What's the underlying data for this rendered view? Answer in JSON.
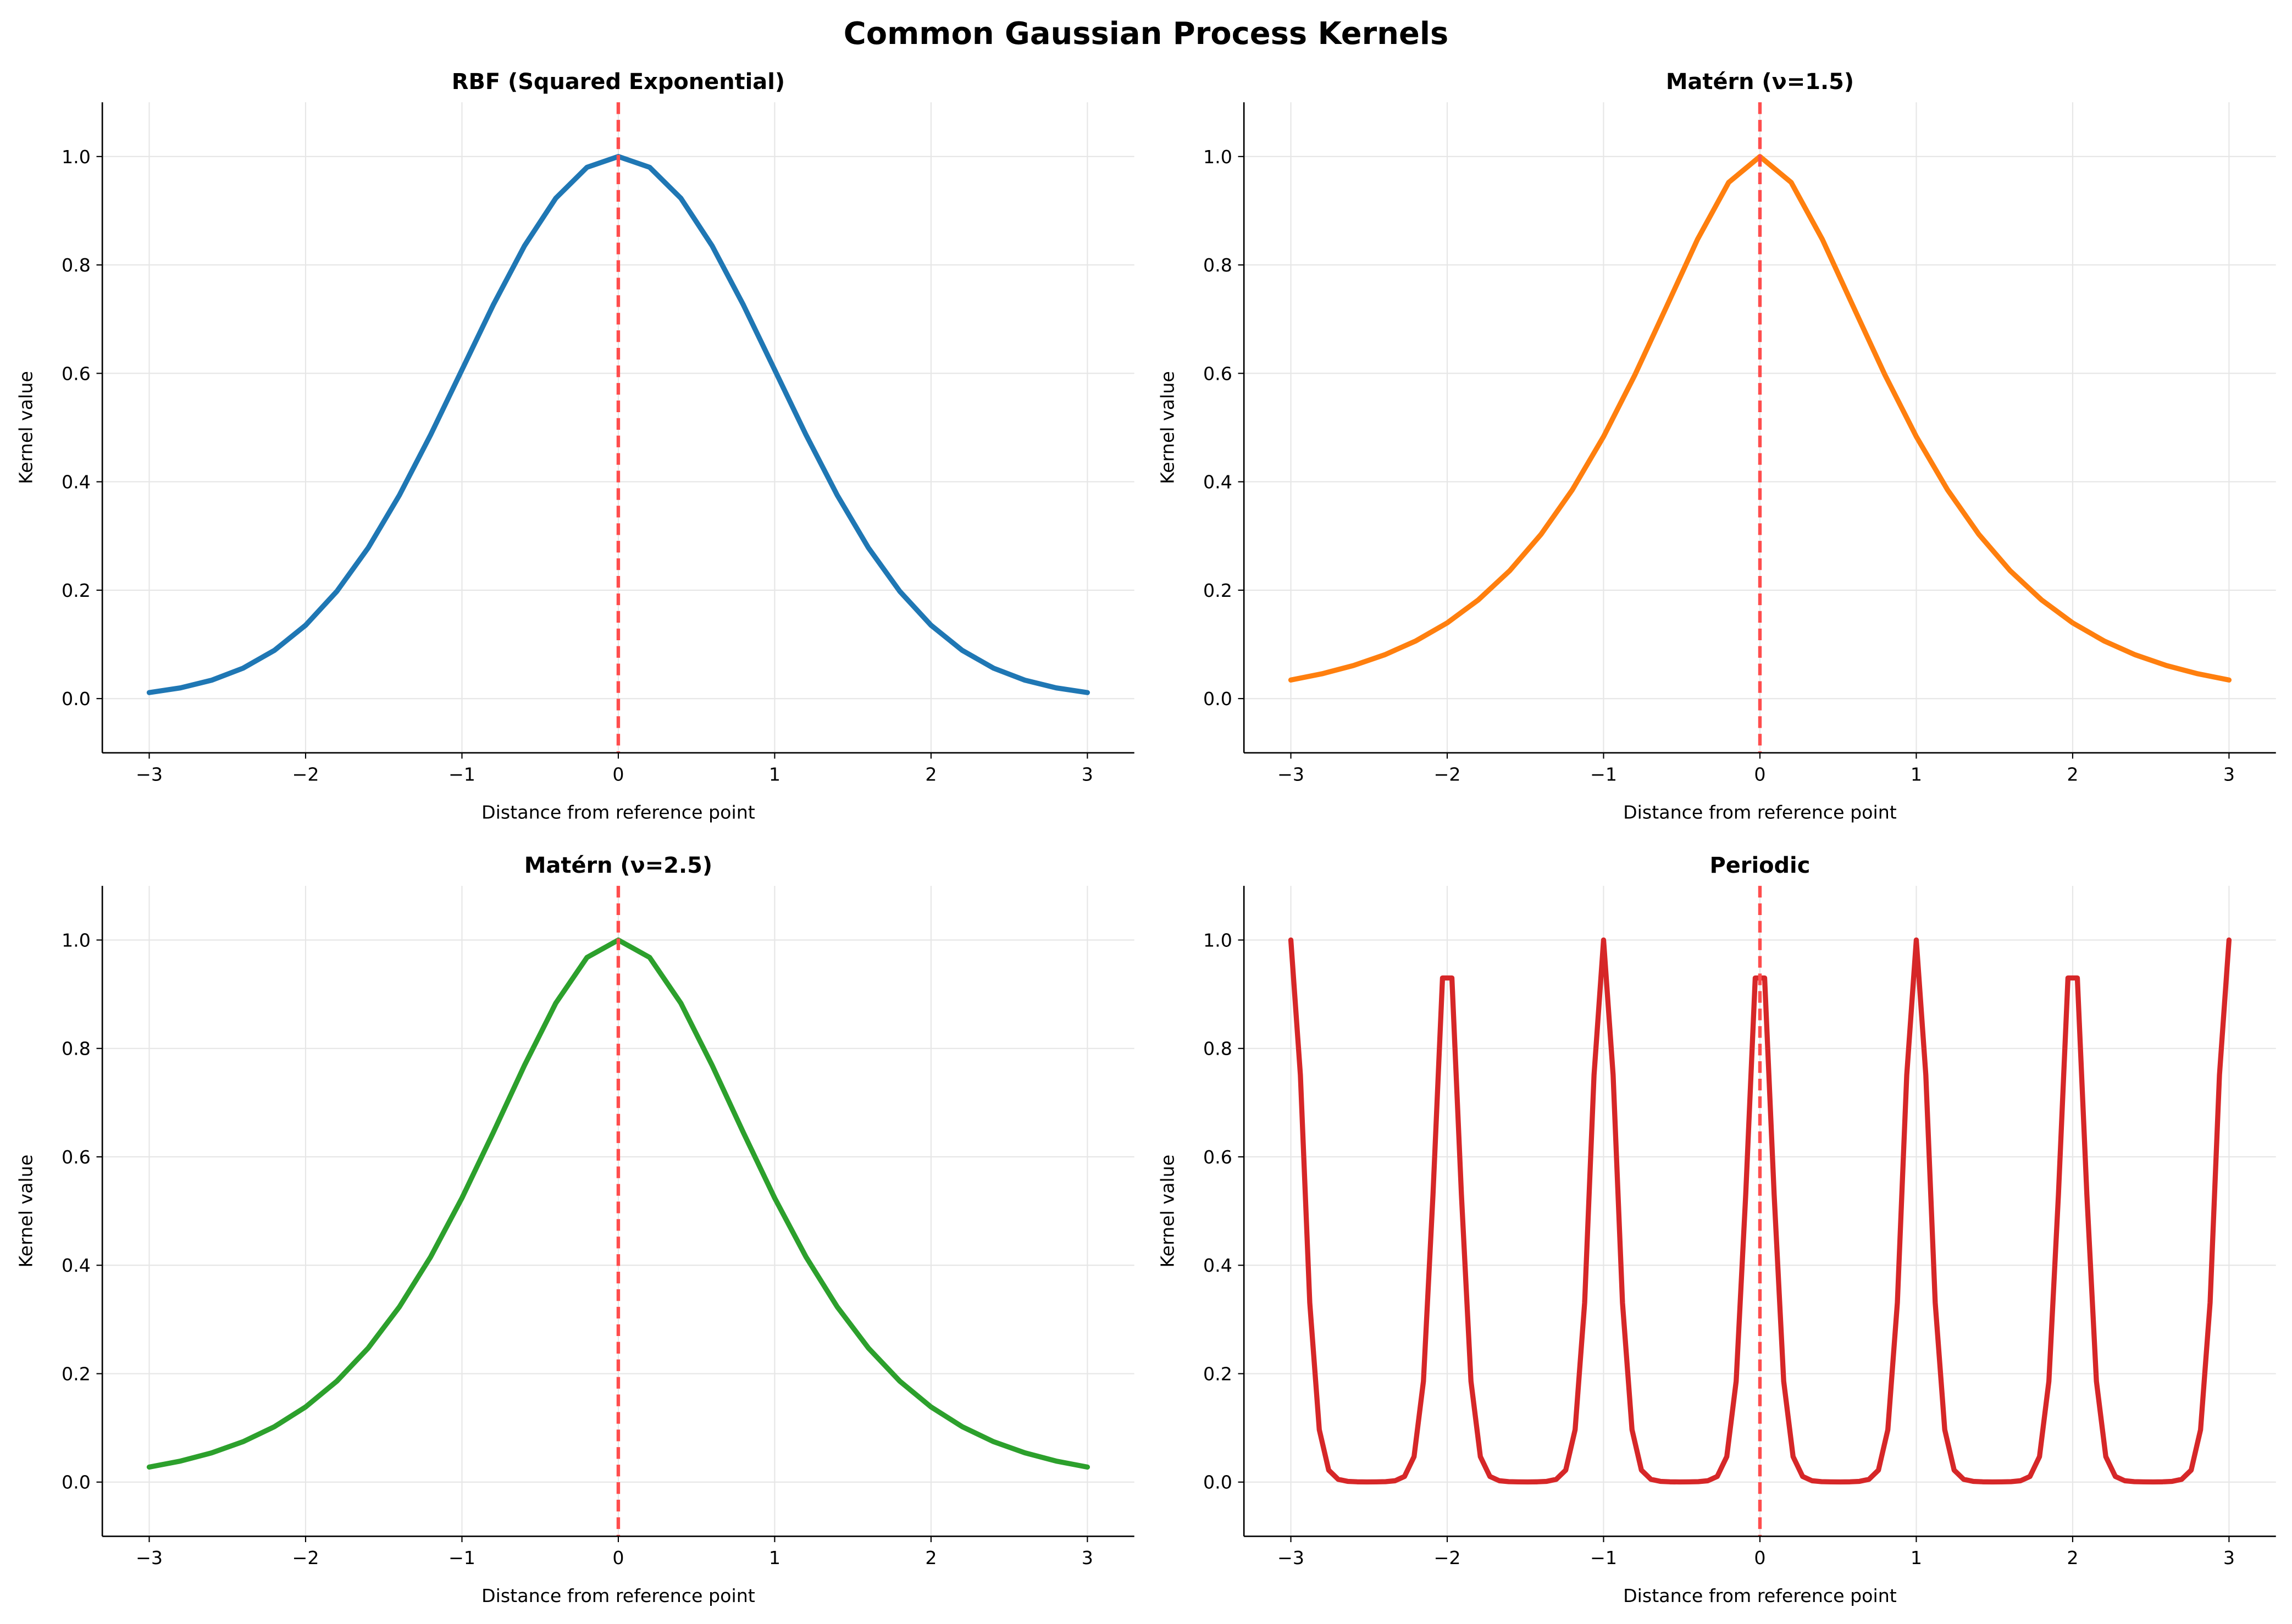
{
  "title": "Common Gaussian Process Kernels",
  "chart_data": [
    {
      "type": "line",
      "title": "RBF (Squared Exponential)",
      "xlabel": "Distance from reference point",
      "ylabel": "Kernel value",
      "x": [
        -3,
        -2.8,
        -2.6,
        -2.4,
        -2.2,
        -2,
        -1.8,
        -1.6,
        -1.4,
        -1.2,
        -1,
        -0.8,
        -0.6,
        -0.4,
        -0.2,
        0,
        0.2,
        0.4,
        0.6,
        0.8,
        1,
        1.2,
        1.4,
        1.6,
        1.8,
        2,
        2.2,
        2.4,
        2.6,
        2.8,
        3
      ],
      "values": [
        0.0111,
        0.0198,
        0.034,
        0.0561,
        0.0889,
        0.1353,
        0.1979,
        0.278,
        0.3753,
        0.4868,
        0.6065,
        0.7261,
        0.8353,
        0.9231,
        0.9802,
        1,
        0.9802,
        0.9231,
        0.8353,
        0.7261,
        0.6065,
        0.4868,
        0.3753,
        0.278,
        0.1979,
        0.1353,
        0.0889,
        0.0561,
        0.034,
        0.0198,
        0.0111
      ],
      "color": "#1f77b4",
      "xlim": [
        -3.3,
        3.3
      ],
      "ylim": [
        -0.1,
        1.1
      ],
      "xticks": [
        {
          "value": -3,
          "label": "−3"
        },
        {
          "value": -2,
          "label": "−2"
        },
        {
          "value": -1,
          "label": "−1"
        },
        0,
        1,
        2,
        3
      ],
      "yticks": [
        {
          "value": 0,
          "label": "0.0"
        },
        0.2,
        0.4,
        0.6,
        0.8,
        {
          "value": 1,
          "label": "1.0"
        }
      ],
      "grid": true,
      "reference_line": 0,
      "reference_color": "#ff4d4d"
    },
    {
      "type": "line",
      "title": "Matérn (ν=1.5)",
      "xlabel": "Distance from reference point",
      "ylabel": "Kernel value",
      "x": [
        -3,
        -2.8,
        -2.6,
        -2.4,
        -2.2,
        -2,
        -1.8,
        -1.6,
        -1.4,
        -1.2,
        -1,
        -0.8,
        -0.6,
        -0.4,
        -0.2,
        0,
        0.2,
        0.4,
        0.6,
        0.8,
        1,
        1.2,
        1.4,
        1.6,
        1.8,
        2,
        2.2,
        2.4,
        2.6,
        2.8,
        3
      ],
      "values": [
        0.0343,
        0.0458,
        0.061,
        0.0808,
        0.1065,
        0.1397,
        0.1823,
        0.236,
        0.303,
        0.3851,
        0.4834,
        0.5968,
        0.7213,
        0.8467,
        0.9522,
        1,
        0.9522,
        0.8467,
        0.7213,
        0.5968,
        0.4834,
        0.3851,
        0.303,
        0.236,
        0.1823,
        0.1397,
        0.1065,
        0.0808,
        0.061,
        0.0458,
        0.0343
      ],
      "color": "#ff7f0e",
      "xlim": [
        -3.3,
        3.3
      ],
      "ylim": [
        -0.1,
        1.1
      ],
      "xticks": [
        {
          "value": -3,
          "label": "−3"
        },
        {
          "value": -2,
          "label": "−2"
        },
        {
          "value": -1,
          "label": "−1"
        },
        0,
        1,
        2,
        3
      ],
      "yticks": [
        {
          "value": 0,
          "label": "0.0"
        },
        0.2,
        0.4,
        0.6,
        0.8,
        {
          "value": 1,
          "label": "1.0"
        }
      ],
      "grid": true,
      "reference_line": 0,
      "reference_color": "#ff4d4d"
    },
    {
      "type": "line",
      "title": "Matérn (ν=2.5)",
      "xlabel": "Distance from reference point",
      "ylabel": "Kernel value",
      "x": [
        -3,
        -2.8,
        -2.6,
        -2.4,
        -2.2,
        -2,
        -1.8,
        -1.6,
        -1.4,
        -1.2,
        -1,
        -0.8,
        -0.6,
        -0.4,
        -0.2,
        0,
        0.2,
        0.4,
        0.6,
        0.8,
        1,
        1.2,
        1.4,
        1.6,
        1.8,
        2,
        2.2,
        2.4,
        2.6,
        2.8,
        3
      ],
      "values": [
        0.0277,
        0.0388,
        0.054,
        0.0745,
        0.1021,
        0.1386,
        0.1862,
        0.2471,
        0.3233,
        0.4156,
        0.524,
        0.6446,
        0.7689,
        0.8835,
        0.968,
        1,
        0.968,
        0.8835,
        0.7689,
        0.6446,
        0.524,
        0.4156,
        0.3233,
        0.2471,
        0.1862,
        0.1386,
        0.1021,
        0.0745,
        0.054,
        0.0388,
        0.0277
      ],
      "color": "#2ca02c",
      "xlim": [
        -3.3,
        3.3
      ],
      "ylim": [
        -0.1,
        1.1
      ],
      "xticks": [
        {
          "value": -3,
          "label": "−3"
        },
        {
          "value": -2,
          "label": "−2"
        },
        {
          "value": -1,
          "label": "−1"
        },
        0,
        1,
        2,
        3
      ],
      "yticks": [
        {
          "value": 0,
          "label": "0.0"
        },
        0.2,
        0.4,
        0.6,
        0.8,
        {
          "value": 1,
          "label": "1.0"
        }
      ],
      "grid": true,
      "reference_line": 0,
      "reference_color": "#ff4d4d"
    },
    {
      "type": "line",
      "title": "Periodic",
      "xlabel": "Distance from reference point",
      "ylabel": "Kernel value",
      "x": [
        -3,
        -2.939,
        -2.879,
        -2.818,
        -2.758,
        -2.697,
        -2.636,
        -2.576,
        -2.515,
        -2.455,
        -2.394,
        -2.333,
        -2.273,
        -2.212,
        -2.152,
        -2.091,
        -2.03,
        -1.97,
        -1.909,
        -1.848,
        -1.788,
        -1.727,
        -1.667,
        -1.606,
        -1.545,
        -1.485,
        -1.424,
        -1.364,
        -1.303,
        -1.242,
        -1.182,
        -1.121,
        -1.061,
        -1,
        -0.939,
        -0.879,
        -0.818,
        -0.758,
        -0.697,
        -0.636,
        -0.576,
        -0.515,
        -0.455,
        -0.394,
        -0.333,
        -0.273,
        -0.212,
        -0.152,
        -0.091,
        -0.03,
        0.03,
        0.091,
        0.152,
        0.212,
        0.273,
        0.333,
        0.394,
        0.455,
        0.515,
        0.576,
        0.636,
        0.697,
        0.758,
        0.818,
        0.879,
        0.939,
        1,
        1.061,
        1.121,
        1.182,
        1.242,
        1.303,
        1.364,
        1.424,
        1.485,
        1.545,
        1.606,
        1.667,
        1.727,
        1.788,
        1.848,
        1.909,
        1.97,
        2.03,
        2.091,
        2.152,
        2.212,
        2.273,
        2.333,
        2.394,
        2.455,
        2.515,
        2.576,
        2.636,
        2.697,
        2.758,
        2.818,
        2.879,
        2.939,
        3
      ],
      "values": [
        1,
        0.751,
        0.331,
        0.0965,
        0.0221,
        0.005,
        0.0013,
        0.0005,
        0.0003,
        0.0004,
        0.0008,
        0.0025,
        0.0104,
        0.047,
        0.186,
        0.53,
        0.93,
        0.93,
        0.53,
        0.186,
        0.047,
        0.0104,
        0.0025,
        0.0008,
        0.0004,
        0.0003,
        0.0005,
        0.0013,
        0.005,
        0.0221,
        0.0965,
        0.331,
        0.751,
        1,
        0.751,
        0.331,
        0.0965,
        0.0221,
        0.005,
        0.0013,
        0.0005,
        0.0003,
        0.0004,
        0.0008,
        0.0025,
        0.0104,
        0.047,
        0.186,
        0.53,
        0.93,
        0.93,
        0.53,
        0.186,
        0.047,
        0.0104,
        0.0025,
        0.0008,
        0.0004,
        0.0003,
        0.0005,
        0.0013,
        0.005,
        0.0221,
        0.0965,
        0.331,
        0.751,
        1,
        0.751,
        0.331,
        0.0965,
        0.0221,
        0.005,
        0.0013,
        0.0005,
        0.0003,
        0.0004,
        0.0008,
        0.0025,
        0.0104,
        0.047,
        0.186,
        0.53,
        0.93,
        0.93,
        0.53,
        0.186,
        0.047,
        0.0104,
        0.0025,
        0.0008,
        0.0004,
        0.0003,
        0.0005,
        0.0013,
        0.005,
        0.0221,
        0.0965,
        0.331,
        0.751,
        1
      ],
      "color": "#d62728",
      "xlim": [
        -3.3,
        3.3
      ],
      "ylim": [
        -0.1,
        1.1
      ],
      "xticks": [
        {
          "value": -3,
          "label": "−3"
        },
        {
          "value": -2,
          "label": "−2"
        },
        {
          "value": -1,
          "label": "−1"
        },
        0,
        1,
        2,
        3
      ],
      "yticks": [
        {
          "value": 0,
          "label": "0.0"
        },
        0.2,
        0.4,
        0.6,
        0.8,
        {
          "value": 1,
          "label": "1.0"
        }
      ],
      "grid": true,
      "reference_line": 0,
      "reference_color": "#ff4d4d"
    }
  ]
}
